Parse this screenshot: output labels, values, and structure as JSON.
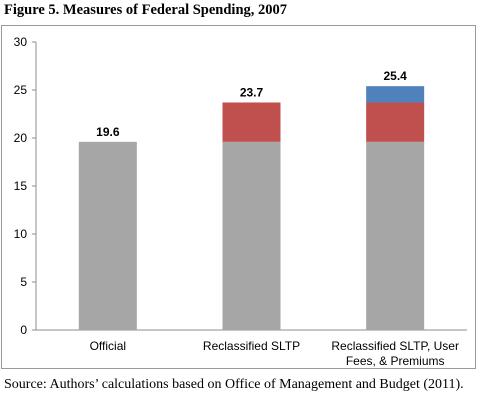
{
  "figure": {
    "title": "Figure 5. Measures of Federal Spending, 2007",
    "source": "Source: Authors’ calculations based on Office of Management and Budget (2011)."
  },
  "chart_data": {
    "type": "bar",
    "stacked": true,
    "categories": [
      [
        "Official"
      ],
      [
        "Reclassified SLTP"
      ],
      [
        "Reclassified SLTP, User",
        "Fees, & Premiums"
      ]
    ],
    "series": [
      {
        "values": [
          19.6,
          19.6,
          19.6
        ],
        "color": "#a6a6a6"
      },
      {
        "values": [
          0,
          4.1,
          4.1
        ],
        "color": "#c0504d"
      },
      {
        "values": [
          0,
          0,
          1.7
        ],
        "color": "#4f81bd"
      }
    ],
    "totals": [
      "19.6",
      "23.7",
      "25.4"
    ],
    "yticks": [
      0,
      5,
      10,
      15,
      20,
      25,
      30
    ],
    "ylim": [
      0,
      30
    ],
    "grid": false,
    "legend": "none",
    "xlabel": "",
    "ylabel": ""
  }
}
